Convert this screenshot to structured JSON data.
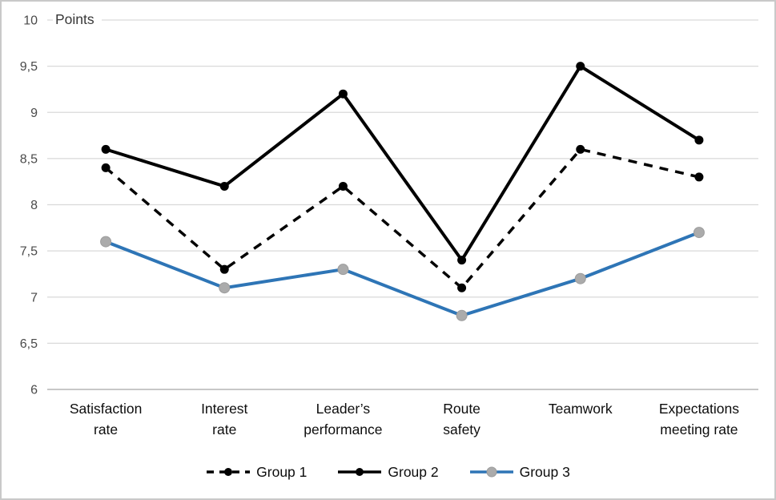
{
  "chart_data": {
    "type": "line",
    "title": "",
    "xlabel": "",
    "ylabel": "Points",
    "categories": [
      "Satisfaction\nrate",
      "Interest\nrate",
      "Leader’s\nperformance",
      "Route\nsafety",
      "Teamwork",
      "Expectations\nmeeting rate"
    ],
    "series": [
      {
        "name": "Group 1",
        "values": [
          8.4,
          7.3,
          8.2,
          7.1,
          8.6,
          8.3
        ],
        "color": "#000000",
        "line_style": "dashed",
        "marker_color": "#000000",
        "marker_size": 5.5
      },
      {
        "name": "Group 2",
        "values": [
          8.6,
          8.2,
          9.2,
          7.4,
          9.5,
          8.7
        ],
        "color": "#000000",
        "line_style": "solid",
        "marker_color": "#000000",
        "marker_size": 5.5
      },
      {
        "name": "Group 3",
        "values": [
          7.6,
          7.1,
          7.3,
          6.8,
          7.2,
          7.7
        ],
        "color": "#2E75B6",
        "line_style": "solid",
        "marker_color": "#ABABAB",
        "marker_edge": "#9C9C9C",
        "marker_size": 6.5
      }
    ],
    "axis": {
      "ymin": 6,
      "ymax": 10,
      "step": 0.5,
      "tick_labels": [
        "10",
        "9,5",
        "9",
        "8,5",
        "8",
        "7,5",
        "7",
        "6,5",
        "6"
      ]
    },
    "ylim": [
      6,
      10
    ],
    "grid": true,
    "legend_position": "bottom",
    "colors": {
      "gridline": "#D9D9D9",
      "axis_line": "#BFBFBF",
      "tick_text": "#4A4A4A",
      "category_text": "#0D0D0D",
      "legend_text": "#0D0D0D",
      "axis_title_text": "#383838",
      "frame_border": "#C9C9C9"
    }
  }
}
